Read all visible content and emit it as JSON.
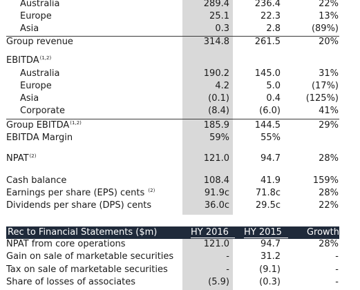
{
  "summary_rows": [
    {
      "label": "Australia",
      "hy2016": "289.4",
      "hy2015": "236.4",
      "growth": "22%"
    },
    {
      "label": "Europe",
      "hy2016": "25.1",
      "hy2015": "22.3",
      "growth": "13%"
    },
    {
      "label": "Asia",
      "hy2016": "0.3",
      "hy2015": "2.8",
      "growth": "(89%)"
    },
    {
      "label": "Group revenue",
      "hy2016": "314.8",
      "hy2015": "261.5",
      "growth": "20%"
    },
    {
      "label": "EBITDA",
      "sup": "(1,2)"
    },
    {
      "label": "Australia",
      "hy2016": "190.2",
      "hy2015": "145.0",
      "growth": "31%"
    },
    {
      "label": "Europe",
      "hy2016": "4.2",
      "hy2015": "5.0",
      "growth": "(17%)"
    },
    {
      "label": "Asia",
      "hy2016": "(0.1)",
      "hy2015": "0.4",
      "growth": "(125%)"
    },
    {
      "label": "Corporate",
      "hy2016": "(8.4)",
      "hy2015": "(6.0)",
      "growth": "41%"
    },
    {
      "label": "Group EBITDA",
      "sup": "(1,2)",
      "hy2016": "185.9",
      "hy2015": "144.5",
      "growth": "29%"
    },
    {
      "label": "EBITDA Margin",
      "hy2016": "59%",
      "hy2015": "55%",
      "growth": ""
    },
    {
      "label": "NPAT",
      "sup": "(2)",
      "hy2016": "121.0",
      "hy2015": "94.7",
      "growth": "28%"
    },
    {
      "label": "Cash balance",
      "hy2016": "108.4",
      "hy2015": "41.9",
      "growth": "159%"
    },
    {
      "label": "Earnings per share (EPS) cents",
      "sup": "(2)",
      "hy2016": "91.9c",
      "hy2015": "71.8c",
      "growth": "28%"
    },
    {
      "label": "Dividends per share (DPS) cents",
      "hy2016": "36.0c",
      "hy2015": "29.5c",
      "growth": "22%"
    }
  ],
  "rec_header": {
    "title": "Rec to Financial Statements ($m)",
    "hy2016": "HY 2016",
    "hy2015": "HY 2015",
    "growth": "Growth"
  },
  "rec_rows": [
    {
      "label": "NPAT from core operations",
      "hy2016": "121.0",
      "hy2015": "94.7",
      "growth": "28%"
    },
    {
      "label": "Gain on sale of marketable securities",
      "hy2016": "-",
      "hy2015": "31.2",
      "growth": "-"
    },
    {
      "label": "Tax on sale of marketable securities",
      "hy2016": "-",
      "hy2015": "(9.1)",
      "growth": "-"
    },
    {
      "label": "Share of losses of associates",
      "hy2016": "(5.9)",
      "hy2015": "(0.3)",
      "growth": "-"
    }
  ]
}
